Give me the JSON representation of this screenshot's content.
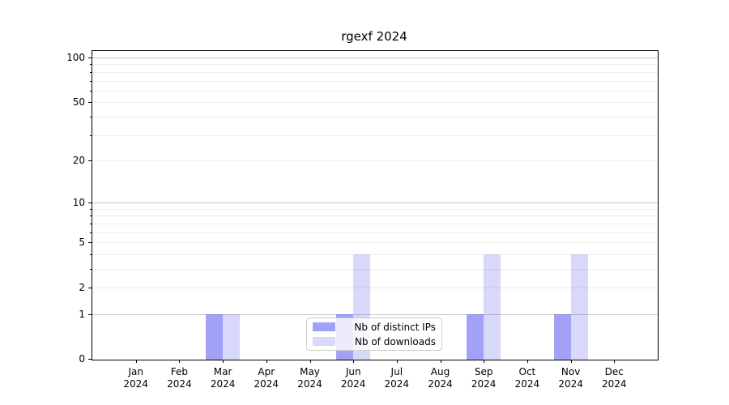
{
  "title": "rgexf 2024",
  "chart_data": {
    "type": "bar",
    "title": "rgexf 2024",
    "categories": [
      "Jan",
      "Feb",
      "Mar",
      "Apr",
      "May",
      "Jun",
      "Jul",
      "Aug",
      "Sep",
      "Oct",
      "Nov",
      "Dec"
    ],
    "category_year": "2024",
    "series": [
      {
        "name": "Nb of distinct IPs",
        "color": "#a1a1f5",
        "fill": "rgba(47,47,232,0.45)",
        "values": [
          0,
          0,
          1,
          0,
          0,
          1,
          0,
          0,
          1,
          0,
          1,
          0
        ]
      },
      {
        "name": "Nb of downloads",
        "color": "#d8d8fb",
        "fill": "rgba(47,47,232,0.19)",
        "values": [
          0,
          0,
          1,
          0,
          0,
          4,
          0,
          0,
          4,
          0,
          4,
          0
        ]
      }
    ],
    "yscale": "log1p",
    "ylim": [
      0,
      110
    ],
    "y_ticks_labeled": [
      0,
      1,
      2,
      5,
      10,
      20,
      50,
      100
    ],
    "y_ticks_minor": [
      3,
      4,
      6,
      7,
      8,
      9,
      30,
      40,
      60,
      70,
      80,
      90
    ],
    "y_gridline_major_values": [
      1,
      10,
      100
    ],
    "grid": "on",
    "legend_position": "lower center",
    "colors": {
      "grid_major": "#c9c9c9",
      "grid_minor": "#ededed",
      "frame": "#000000",
      "background": "#ffffff"
    }
  },
  "legend": {
    "entries": [
      {
        "label": "Nb of distinct IPs"
      },
      {
        "label": "Nb of downloads"
      }
    ]
  }
}
